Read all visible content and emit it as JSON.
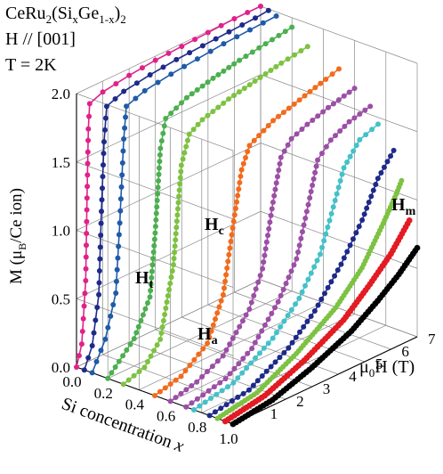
{
  "header": {
    "line1_main": "CeRu",
    "line1_sub1": "2",
    "line1_open": "(Si",
    "line1_subx": "x",
    "line1_ge": "Ge",
    "line1_sub1x": "1-x",
    "line1_close": ")",
    "line1_sub2": "2",
    "line2": "H // [001]",
    "line3": "T = 2K"
  },
  "axes": {
    "z_label_prefix": "M (μ",
    "z_label_sub": "B",
    "z_label_suffix": "/Ce ion)",
    "x_label_text": "Si concentration ",
    "x_label_var": "x",
    "y_label_mu": "μ",
    "y_label_sub": "0",
    "y_label_suffix": "H (T)"
  },
  "annotations": {
    "Hc_main": "H",
    "Hc_sub": "c",
    "Ht_main": "H",
    "Ht_sub": "t",
    "Ha_main": "H",
    "Ha_sub": "a",
    "Hm_main": "H",
    "Hm_sub": "m"
  },
  "chart_data": {
    "type": "line",
    "title": "CeRu2(SixGe1-x)2, H // [001], T = 2K",
    "xlabel": "Si concentration x",
    "ylabel": "μ0H (T)",
    "zlabel": "M (μB/Ce ion)",
    "x_ticks": [
      "0.0",
      "0.2",
      "0.4",
      "0.6",
      "0.8",
      "1.0"
    ],
    "y_ticks": [
      "1",
      "2",
      "3",
      "4",
      "5",
      "6",
      "7"
    ],
    "z_ticks": [
      "0.0",
      "0.5",
      "1.0",
      "1.5",
      "2.0"
    ],
    "x_range": [
      0,
      1
    ],
    "y_range": [
      0,
      7
    ],
    "z_range": [
      0,
      2
    ],
    "grid": true,
    "series": [
      {
        "x": 0.0,
        "color": "#e0218a",
        "field": [
          0,
          0.2,
          0.35,
          0.4,
          0.45,
          0.5,
          1,
          2,
          3,
          4,
          5,
          6,
          7
        ],
        "moment": [
          0,
          0.15,
          0.6,
          1.2,
          1.7,
          1.88,
          1.92,
          1.95,
          1.97,
          1.98,
          1.99,
          2.0,
          2.0
        ]
      },
      {
        "x": 0.05,
        "color": "#1e2a8a",
        "field": [
          0,
          0.3,
          0.55,
          0.65,
          0.75,
          0.85,
          1.5,
          2.5,
          3.5,
          4.5,
          5.5,
          6.5,
          7
        ],
        "moment": [
          0,
          0.15,
          0.5,
          1.1,
          1.6,
          1.85,
          1.9,
          1.93,
          1.95,
          1.96,
          1.97,
          1.98,
          1.99
        ]
      },
      {
        "x": 0.1,
        "color": "#1f5aa8",
        "field": [
          0,
          0.5,
          0.9,
          1.05,
          1.2,
          1.3,
          2,
          3,
          4,
          5,
          6,
          7
        ],
        "moment": [
          0,
          0.2,
          0.5,
          1.0,
          1.6,
          1.83,
          1.88,
          1.91,
          1.93,
          1.95,
          1.96,
          1.97
        ]
      },
      {
        "x": 0.2,
        "color": "#4caf50",
        "field": [
          0,
          1.0,
          1.6,
          1.8,
          2.0,
          2.2,
          3,
          4,
          5,
          6,
          7
        ],
        "moment": [
          0,
          0.2,
          0.45,
          0.9,
          1.5,
          1.7,
          1.78,
          1.83,
          1.87,
          1.9,
          1.93
        ]
      },
      {
        "x": 0.3,
        "color": "#7dc242",
        "field": [
          0,
          0.8,
          1.4,
          1.9,
          2.2,
          2.5,
          3,
          4,
          5,
          6,
          7
        ],
        "moment": [
          0,
          0.05,
          0.2,
          0.7,
          1.4,
          1.6,
          1.66,
          1.72,
          1.76,
          1.8,
          1.83
        ]
      },
      {
        "x": 0.5,
        "color": "#f26b1d",
        "field": [
          0,
          1.0,
          2.0,
          2.6,
          3.0,
          3.3,
          3.6,
          4.5,
          5.5,
          6.5,
          7
        ],
        "moment": [
          0,
          0.05,
          0.2,
          0.5,
          1.0,
          1.35,
          1.5,
          1.6,
          1.66,
          1.72,
          1.75
        ]
      },
      {
        "x": 0.6,
        "color": "#9b4fa5",
        "field": [
          0,
          1.0,
          2.0,
          3.0,
          3.5,
          3.9,
          4.2,
          4.6,
          5.2,
          6,
          7
        ],
        "moment": [
          0,
          0.05,
          0.15,
          0.4,
          0.65,
          1.1,
          1.4,
          1.5,
          1.55,
          1.6,
          1.65
        ]
      },
      {
        "x": 0.7,
        "color": "#9b4fa5",
        "field": [
          0,
          1.5,
          2.5,
          3.5,
          4.2,
          4.7,
          5.0,
          5.5,
          6.2,
          7
        ],
        "moment": [
          0,
          0.07,
          0.2,
          0.45,
          0.7,
          1.1,
          1.35,
          1.45,
          1.52,
          1.56
        ]
      },
      {
        "x": 0.75,
        "color": "#45c1c8",
        "field": [
          0,
          1.5,
          3.0,
          4.0,
          4.8,
          5.3,
          5.7,
          6.3,
          7
        ],
        "moment": [
          0,
          0.06,
          0.25,
          0.45,
          0.7,
          1.0,
          1.25,
          1.4,
          1.45
        ]
      },
      {
        "x": 0.85,
        "color": "#1e2a8a",
        "field": [
          0,
          1.5,
          3.0,
          4.0,
          5.0,
          5.8,
          6.4,
          7
        ],
        "moment": [
          0,
          0.05,
          0.22,
          0.4,
          0.65,
          0.9,
          1.15,
          1.3
        ]
      },
      {
        "x": 0.9,
        "color": "#7dc242",
        "field": [
          0,
          1.5,
          3.0,
          4.5,
          5.5,
          6.3,
          6.8,
          7
        ],
        "moment": [
          0,
          0.05,
          0.2,
          0.4,
          0.6,
          0.85,
          1.02,
          1.1
        ]
      },
      {
        "x": 0.95,
        "color": "#e31b23",
        "field": [
          0,
          1.5,
          3.0,
          4.5,
          5.5,
          6.3,
          7
        ],
        "moment": [
          0,
          0.05,
          0.17,
          0.33,
          0.5,
          0.65,
          0.83
        ]
      },
      {
        "x": 1.0,
        "color": "#000000",
        "field": [
          0,
          1.5,
          3.0,
          4.5,
          5.5,
          6.3,
          7
        ],
        "moment": [
          0,
          0.04,
          0.14,
          0.27,
          0.4,
          0.52,
          0.65
        ]
      }
    ]
  }
}
